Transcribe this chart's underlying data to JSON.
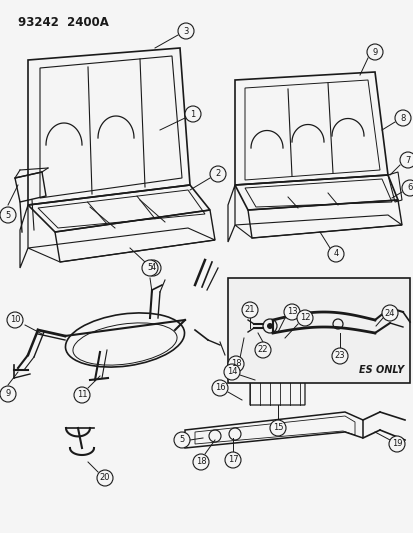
{
  "title": "93242  2400A",
  "bg_color": "#f5f5f5",
  "line_color": "#1a1a1a",
  "fig_width": 4.14,
  "fig_height": 5.33,
  "dpi": 100
}
